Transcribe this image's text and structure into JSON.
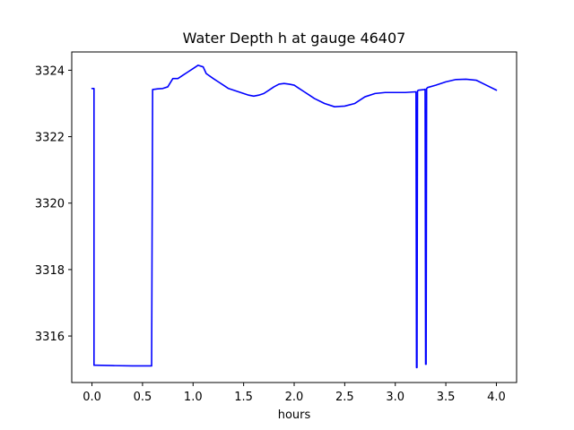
{
  "chart_data": {
    "type": "line",
    "title": "Water Depth h at gauge 46407",
    "xlabel": "hours",
    "ylabel": "",
    "xlim": [
      -0.2,
      4.2
    ],
    "ylim": [
      3314.6,
      3324.55
    ],
    "x_ticks": [
      0.0,
      0.5,
      1.0,
      1.5,
      2.0,
      2.5,
      3.0,
      3.5,
      4.0
    ],
    "x_tick_labels": [
      "0.0",
      "0.5",
      "1.0",
      "1.5",
      "2.0",
      "2.5",
      "3.0",
      "3.5",
      "4.0"
    ],
    "y_ticks": [
      3316,
      3318,
      3320,
      3322,
      3324
    ],
    "y_tick_labels": [
      "3316",
      "3318",
      "3320",
      "3322",
      "3324"
    ],
    "grid": false,
    "colors": {
      "series_line": "#0000ff",
      "axes": "#000000",
      "background": "#ffffff"
    },
    "series": [
      {
        "x": [
          0.0,
          0.02,
          0.02,
          0.04,
          0.2,
          0.4,
          0.59,
          0.6,
          0.65,
          0.7,
          0.75,
          0.8,
          0.85,
          0.9,
          0.95,
          1.0,
          1.05,
          1.1,
          1.13,
          1.2,
          1.25,
          1.3,
          1.35,
          1.4,
          1.45,
          1.5,
          1.55,
          1.6,
          1.65,
          1.7,
          1.75,
          1.8,
          1.85,
          1.9,
          1.95,
          2.0,
          2.05,
          2.1,
          2.15,
          2.2,
          2.3,
          2.4,
          2.5,
          2.6,
          2.7,
          2.8,
          2.9,
          3.0,
          3.1,
          3.2,
          3.205,
          3.21,
          3.215,
          3.22,
          3.23,
          3.29,
          3.295,
          3.3,
          3.305,
          3.31,
          3.32,
          3.4,
          3.5,
          3.6,
          3.7,
          3.8,
          3.9,
          4.0
        ],
        "y": [
          3323.45,
          3323.45,
          3315.12,
          3315.12,
          3315.11,
          3315.1,
          3315.1,
          3323.42,
          3323.44,
          3323.45,
          3323.5,
          3323.75,
          3323.75,
          3323.85,
          3323.95,
          3324.05,
          3324.15,
          3324.1,
          3323.9,
          3323.75,
          3323.65,
          3323.55,
          3323.45,
          3323.4,
          3323.35,
          3323.3,
          3323.25,
          3323.22,
          3323.25,
          3323.3,
          3323.4,
          3323.5,
          3323.58,
          3323.6,
          3323.58,
          3323.55,
          3323.45,
          3323.35,
          3323.25,
          3323.15,
          3323.0,
          3322.9,
          3322.92,
          3323.0,
          3323.2,
          3323.3,
          3323.33,
          3323.33,
          3323.33,
          3323.35,
          3323.35,
          3315.05,
          3315.05,
          3323.38,
          3323.4,
          3323.42,
          3323.43,
          3315.15,
          3315.15,
          3323.45,
          3323.48,
          3323.55,
          3323.65,
          3323.72,
          3323.73,
          3323.7,
          3323.55,
          3323.4
        ]
      }
    ]
  }
}
